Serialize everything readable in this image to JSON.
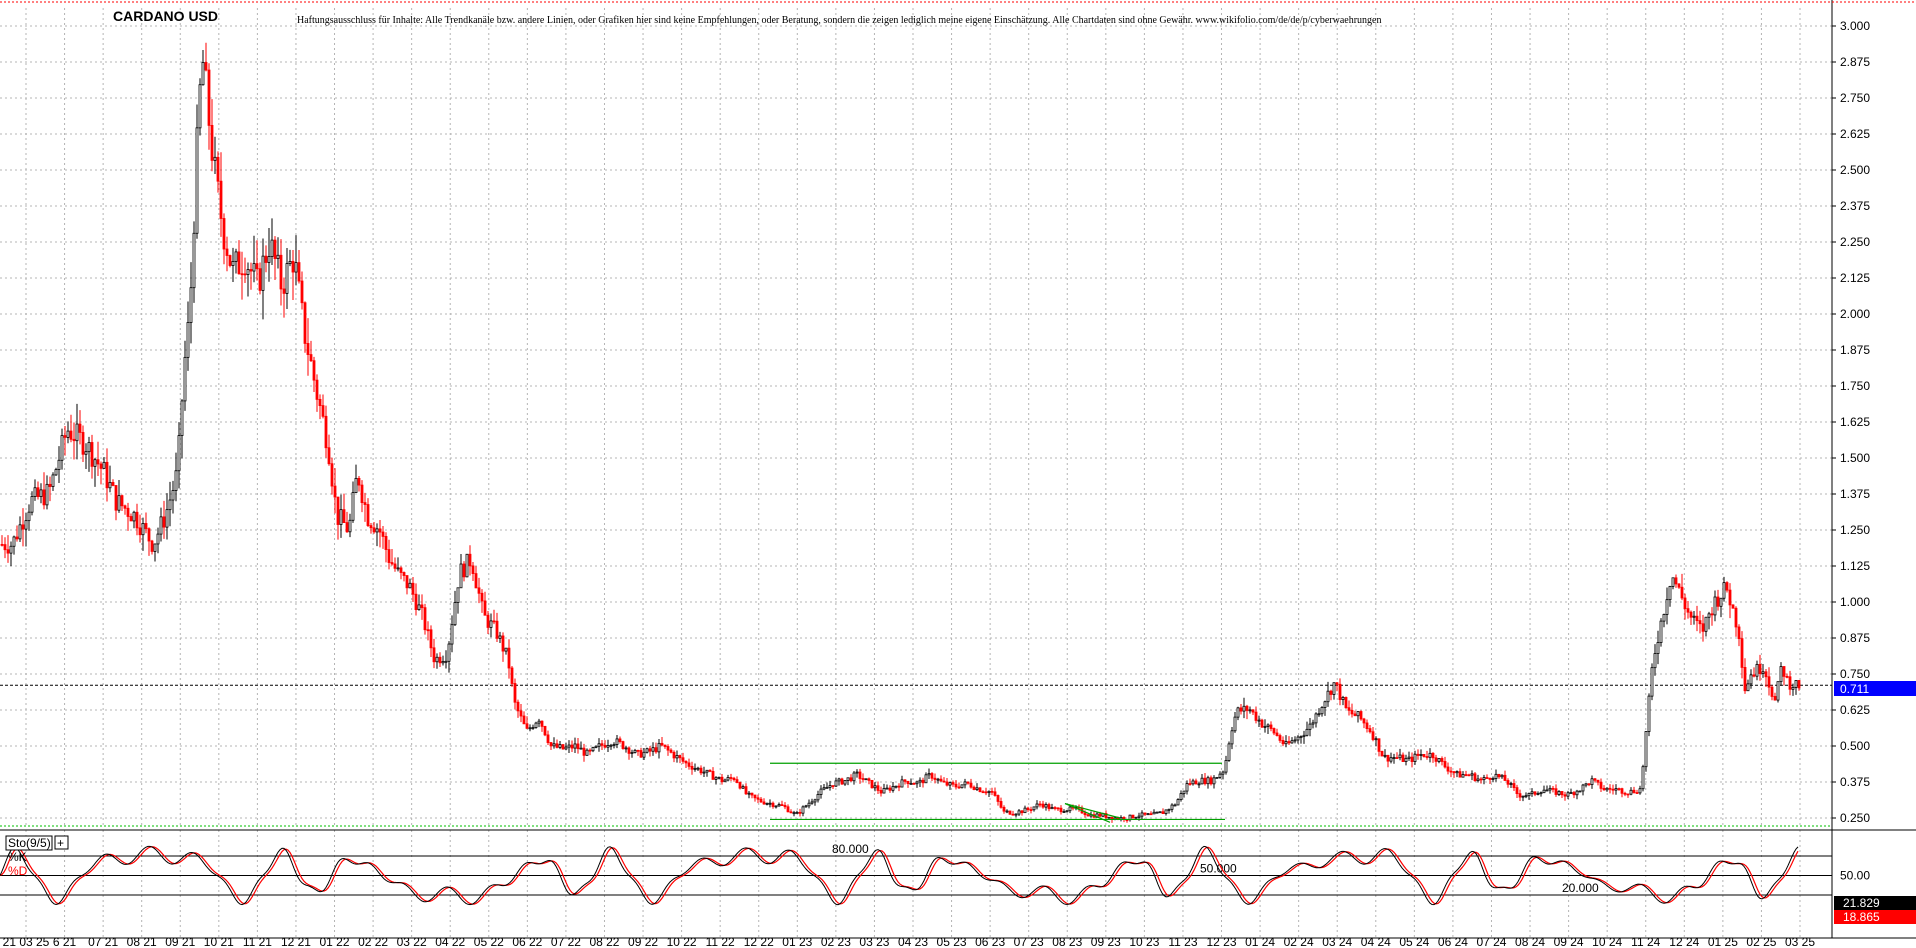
{
  "header": {
    "title": "CARDANO USD",
    "disclaimer": "Haftungsausschluss für Inhalte: Alle Trendkanäle bzw. andere Linien, oder Grafiken hier sind keine Empfehlungen, oder Beratung, sondern die zeigen lediglich meine eigene Einschätzung. Alle Chartdaten sind ohne Gewähr.  www.wikifolio.com/de/de/p/cyberwaehrungen"
  },
  "colors": {
    "up_candle": "#000000",
    "down_candle": "#ff0000",
    "trendline": "#00a000",
    "last_price_box": "#0000ff",
    "stoch_d_box": "#ff0000",
    "grid": "#b4b4b4"
  },
  "chart_data": [
    {
      "type": "candlestick",
      "title": "CARDANO USD",
      "y_ticks": [
        "3.000",
        "2.875",
        "2.750",
        "2.625",
        "2.500",
        "2.375",
        "2.250",
        "2.125",
        "2.000",
        "1.875",
        "1.750",
        "1.625",
        "1.500",
        "1.375",
        "1.250",
        "1.125",
        "1.000",
        "0.875",
        "0.750",
        "0.625",
        "0.500",
        "0.375",
        "0.250"
      ],
      "ylim": [
        0.225,
        3.05
      ],
      "last_price": "0.711",
      "x_labels": [
        "21 03 25",
        "6 21",
        "07 21",
        "08 21",
        "09 21",
        "10 21",
        "11 21",
        "12 21",
        "01 22",
        "02 22",
        "03 22",
        "04 22",
        "05 22",
        "06 22",
        "07 22",
        "08 22",
        "09 22",
        "10 22",
        "11 22",
        "12 22",
        "01 23",
        "02 23",
        "03 23",
        "04 23",
        "05 23",
        "06 23",
        "07 23",
        "08 23",
        "09 23",
        "10 23",
        "11 23",
        "12 23",
        "01 24",
        "02 24",
        "03 24",
        "04 24",
        "05 24",
        "06 24",
        "07 24",
        "08 24",
        "09 24",
        "10 24",
        "11 24",
        "12 24",
        "01 25",
        "02 25",
        "03 25"
      ],
      "close_path": [
        [
          0,
          1.2
        ],
        [
          10,
          1.2
        ],
        [
          25,
          1.35
        ],
        [
          40,
          1.38
        ],
        [
          55,
          1.6
        ],
        [
          70,
          1.55
        ],
        [
          85,
          1.45
        ],
        [
          95,
          1.35
        ],
        [
          110,
          1.3
        ],
        [
          125,
          1.2
        ],
        [
          135,
          1.3
        ],
        [
          145,
          1.45
        ],
        [
          150,
          1.8
        ],
        [
          155,
          2.0
        ],
        [
          160,
          2.5
        ],
        [
          165,
          2.9
        ],
        [
          170,
          2.7
        ],
        [
          175,
          2.5
        ],
        [
          182,
          2.3
        ],
        [
          190,
          2.15
        ],
        [
          200,
          2.2
        ],
        [
          210,
          2.1
        ],
        [
          220,
          2.25
        ],
        [
          230,
          2.1
        ],
        [
          240,
          2.2
        ],
        [
          248,
          1.95
        ],
        [
          260,
          1.7
        ],
        [
          268,
          1.55
        ],
        [
          275,
          1.3
        ],
        [
          285,
          1.25
        ],
        [
          292,
          1.45
        ],
        [
          300,
          1.3
        ],
        [
          310,
          1.25
        ],
        [
          318,
          1.15
        ],
        [
          325,
          1.1
        ],
        [
          335,
          1.05
        ],
        [
          345,
          0.95
        ],
        [
          355,
          0.8
        ],
        [
          365,
          0.82
        ],
        [
          375,
          1.1
        ],
        [
          385,
          1.15
        ],
        [
          395,
          0.95
        ],
        [
          405,
          0.9
        ],
        [
          415,
          0.8
        ],
        [
          420,
          0.65
        ],
        [
          430,
          0.55
        ],
        [
          440,
          0.6
        ],
        [
          450,
          0.5
        ],
        [
          460,
          0.49
        ],
        [
          470,
          0.5
        ],
        [
          480,
          0.47
        ],
        [
          490,
          0.5
        ],
        [
          500,
          0.52
        ],
        [
          510,
          0.5
        ],
        [
          520,
          0.47
        ],
        [
          530,
          0.48
        ],
        [
          540,
          0.5
        ],
        [
          550,
          0.47
        ],
        [
          560,
          0.44
        ],
        [
          570,
          0.42
        ],
        [
          580,
          0.4
        ],
        [
          590,
          0.38
        ],
        [
          600,
          0.39
        ],
        [
          610,
          0.33
        ],
        [
          620,
          0.31
        ],
        [
          630,
          0.3
        ],
        [
          640,
          0.29
        ],
        [
          650,
          0.26
        ],
        [
          660,
          0.3
        ],
        [
          670,
          0.34
        ],
        [
          680,
          0.37
        ],
        [
          690,
          0.38
        ],
        [
          700,
          0.4
        ],
        [
          710,
          0.37
        ],
        [
          720,
          0.34
        ],
        [
          730,
          0.36
        ],
        [
          740,
          0.38
        ],
        [
          750,
          0.37
        ],
        [
          760,
          0.4
        ],
        [
          770,
          0.37
        ],
        [
          780,
          0.36
        ],
        [
          790,
          0.37
        ],
        [
          800,
          0.35
        ],
        [
          810,
          0.34
        ],
        [
          820,
          0.27
        ],
        [
          830,
          0.27
        ],
        [
          840,
          0.28
        ],
        [
          850,
          0.3
        ],
        [
          860,
          0.28
        ],
        [
          870,
          0.28
        ],
        [
          880,
          0.28
        ],
        [
          890,
          0.26
        ],
        [
          900,
          0.26
        ],
        [
          910,
          0.25
        ],
        [
          920,
          0.25
        ],
        [
          930,
          0.26
        ],
        [
          940,
          0.26
        ],
        [
          950,
          0.27
        ],
        [
          960,
          0.3
        ],
        [
          970,
          0.37
        ],
        [
          980,
          0.38
        ],
        [
          990,
          0.38
        ],
        [
          1000,
          0.42
        ],
        [
          1005,
          0.55
        ],
        [
          1010,
          0.62
        ],
        [
          1020,
          0.63
        ],
        [
          1030,
          0.58
        ],
        [
          1040,
          0.55
        ],
        [
          1050,
          0.5
        ],
        [
          1060,
          0.53
        ],
        [
          1070,
          0.57
        ],
        [
          1080,
          0.65
        ],
        [
          1090,
          0.72
        ],
        [
          1100,
          0.62
        ],
        [
          1110,
          0.6
        ],
        [
          1120,
          0.55
        ],
        [
          1130,
          0.46
        ],
        [
          1140,
          0.46
        ],
        [
          1150,
          0.45
        ],
        [
          1160,
          0.47
        ],
        [
          1170,
          0.47
        ],
        [
          1180,
          0.43
        ],
        [
          1190,
          0.4
        ],
        [
          1200,
          0.4
        ],
        [
          1210,
          0.38
        ],
        [
          1220,
          0.4
        ],
        [
          1230,
          0.38
        ],
        [
          1240,
          0.33
        ],
        [
          1250,
          0.33
        ],
        [
          1260,
          0.35
        ],
        [
          1270,
          0.34
        ],
        [
          1280,
          0.33
        ],
        [
          1290,
          0.35
        ],
        [
          1300,
          0.38
        ],
        [
          1310,
          0.35
        ],
        [
          1320,
          0.35
        ],
        [
          1330,
          0.34
        ],
        [
          1340,
          0.35
        ],
        [
          1345,
          0.58
        ],
        [
          1350,
          0.8
        ],
        [
          1360,
          1.0
        ],
        [
          1365,
          1.1
        ],
        [
          1370,
          1.05
        ],
        [
          1380,
          0.95
        ],
        [
          1390,
          0.9
        ],
        [
          1400,
          1.0
        ],
        [
          1410,
          1.05
        ],
        [
          1420,
          0.9
        ],
        [
          1425,
          0.7
        ],
        [
          1430,
          0.75
        ],
        [
          1440,
          0.78
        ],
        [
          1450,
          0.65
        ],
        [
          1455,
          0.78
        ],
        [
          1460,
          0.72
        ],
        [
          1470,
          0.71
        ]
      ]
    },
    {
      "type": "line",
      "title": "Sto(9/5)",
      "series": [
        {
          "name": "%K",
          "color": "#000000"
        },
        {
          "name": "%D",
          "color": "#ff0000"
        }
      ],
      "y_ticks": [
        "50.00"
      ],
      "ylim": [
        0,
        100
      ],
      "levels": [
        {
          "value": 80,
          "label": "80.000"
        },
        {
          "value": 50,
          "label": "50.000"
        },
        {
          "value": 20,
          "label": "20.000"
        }
      ],
      "last_k": "21.829",
      "last_d": "18.865"
    }
  ]
}
